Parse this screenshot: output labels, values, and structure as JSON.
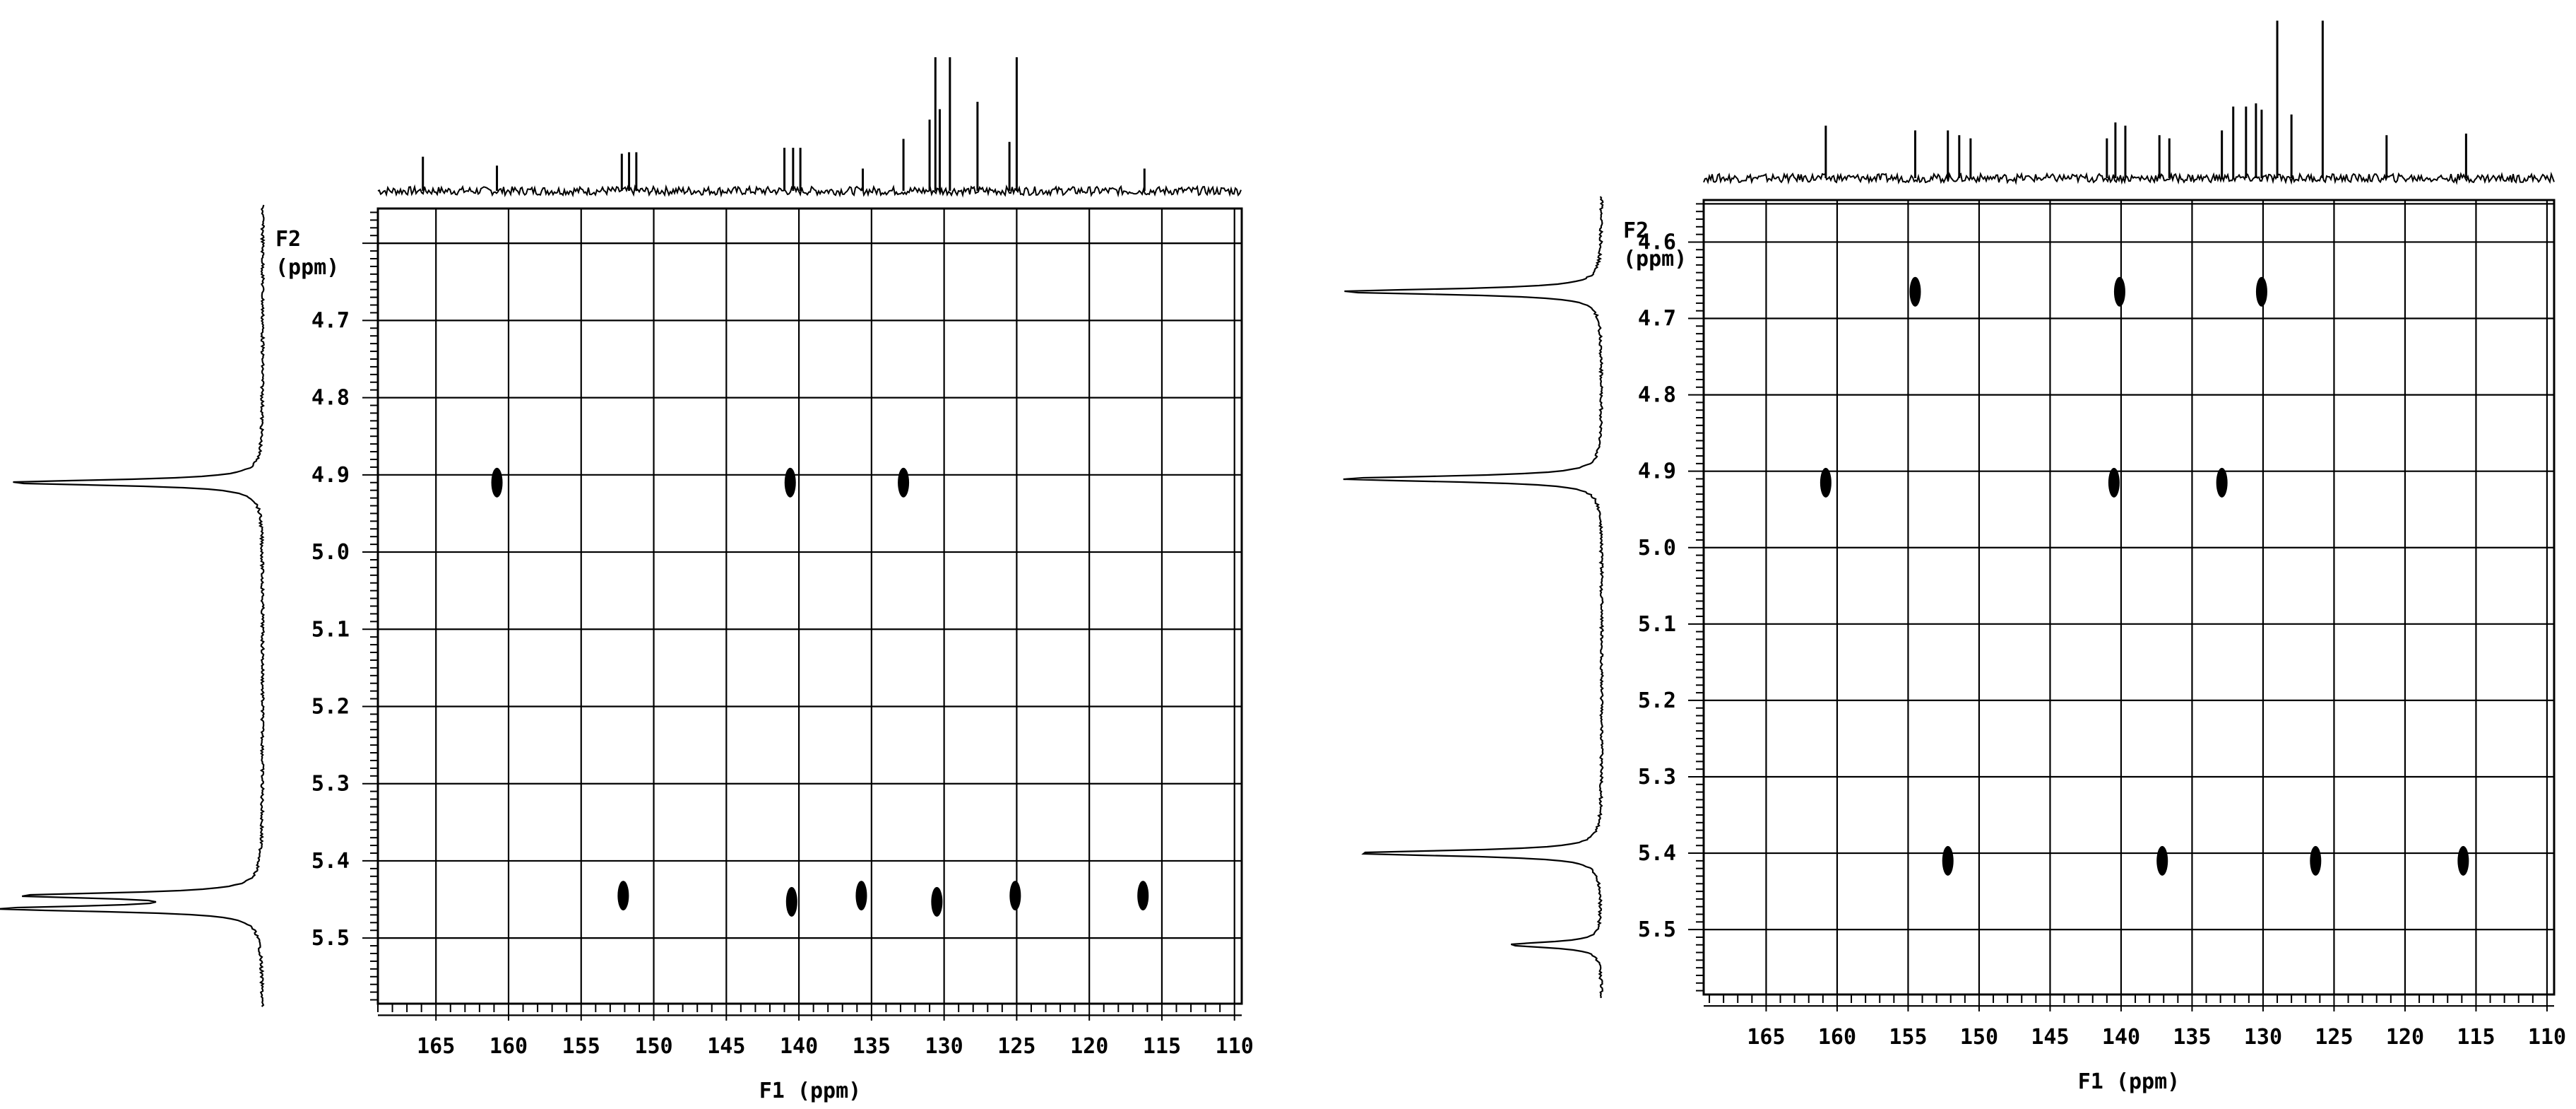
{
  "chart_data": [
    {
      "type": "scatter",
      "xlabel": "F1 (ppm)",
      "ylabel": "F2 (ppm)",
      "xlim": [
        169,
        109.5
      ],
      "ylim": [
        4.555,
        5.585
      ],
      "x_ticks": [
        "165",
        "160",
        "155",
        "150",
        "145",
        "140",
        "135",
        "130",
        "125",
        "120",
        "115",
        "110"
      ],
      "y_ticks": [
        "4.7",
        "4.8",
        "4.9",
        "5.0",
        "5.1",
        "5.2",
        "5.3",
        "5.4",
        "5.5"
      ],
      "grid": true,
      "cross_peaks": [
        {
          "x": 160.8,
          "y": 4.91
        },
        {
          "x": 140.6,
          "y": 4.91
        },
        {
          "x": 132.8,
          "y": 4.91
        },
        {
          "x": 152.1,
          "y": 5.445
        },
        {
          "x": 140.5,
          "y": 5.453
        },
        {
          "x": 135.7,
          "y": 5.445
        },
        {
          "x": 130.5,
          "y": 5.453
        },
        {
          "x": 125.1,
          "y": 5.445
        },
        {
          "x": 116.3,
          "y": 5.445
        }
      ],
      "top_projection_peaks": [
        {
          "ppm": 165.9,
          "h": 0.23
        },
        {
          "ppm": 160.8,
          "h": 0.17
        },
        {
          "ppm": 152.2,
          "h": 0.25
        },
        {
          "ppm": 151.7,
          "h": 0.26
        },
        {
          "ppm": 151.2,
          "h": 0.26
        },
        {
          "ppm": 141.0,
          "h": 0.29
        },
        {
          "ppm": 140.4,
          "h": 0.29
        },
        {
          "ppm": 139.9,
          "h": 0.29
        },
        {
          "ppm": 135.6,
          "h": 0.15
        },
        {
          "ppm": 132.8,
          "h": 0.35
        },
        {
          "ppm": 131.0,
          "h": 0.48
        },
        {
          "ppm": 130.6,
          "h": 0.9
        },
        {
          "ppm": 130.3,
          "h": 0.55
        },
        {
          "ppm": 129.6,
          "h": 0.9
        },
        {
          "ppm": 127.7,
          "h": 0.6
        },
        {
          "ppm": 125.5,
          "h": 0.33
        },
        {
          "ppm": 125.0,
          "h": 0.9
        },
        {
          "ppm": 116.2,
          "h": 0.15
        }
      ],
      "side_projection_peaks": [
        {
          "ppm": 4.91,
          "h": 1.0
        },
        {
          "ppm": 5.445,
          "h": 0.9
        },
        {
          "ppm": 5.462,
          "h": 1.0
        }
      ]
    },
    {
      "type": "scatter",
      "xlabel": "F1 (ppm)",
      "ylabel": "F2 (ppm)",
      "xlim": [
        169.4,
        109.5
      ],
      "ylim": [
        4.545,
        5.585
      ],
      "x_ticks": [
        "165",
        "160",
        "155",
        "150",
        "145",
        "140",
        "135",
        "130",
        "125",
        "120",
        "115",
        "110"
      ],
      "y_ticks": [
        "4.6",
        "4.7",
        "4.8",
        "4.9",
        "5.0",
        "5.1",
        "5.2",
        "5.3",
        "5.4",
        "5.5"
      ],
      "grid": true,
      "cross_peaks": [
        {
          "x": 154.5,
          "y": 4.665
        },
        {
          "x": 140.1,
          "y": 4.665
        },
        {
          "x": 130.1,
          "y": 4.665
        },
        {
          "x": 160.8,
          "y": 4.915
        },
        {
          "x": 140.5,
          "y": 4.915
        },
        {
          "x": 132.9,
          "y": 4.915
        },
        {
          "x": 152.2,
          "y": 5.41
        },
        {
          "x": 137.1,
          "y": 5.41
        },
        {
          "x": 126.3,
          "y": 5.41
        },
        {
          "x": 115.9,
          "y": 5.41
        }
      ],
      "top_projection_peaks": [
        {
          "ppm": 160.8,
          "h": 0.33
        },
        {
          "ppm": 154.5,
          "h": 0.3
        },
        {
          "ppm": 152.2,
          "h": 0.3
        },
        {
          "ppm": 151.4,
          "h": 0.27
        },
        {
          "ppm": 150.6,
          "h": 0.25
        },
        {
          "ppm": 141.0,
          "h": 0.25
        },
        {
          "ppm": 140.4,
          "h": 0.35
        },
        {
          "ppm": 139.7,
          "h": 0.33
        },
        {
          "ppm": 137.3,
          "h": 0.27
        },
        {
          "ppm": 136.6,
          "h": 0.25
        },
        {
          "ppm": 132.9,
          "h": 0.3
        },
        {
          "ppm": 132.1,
          "h": 0.45
        },
        {
          "ppm": 131.2,
          "h": 0.45
        },
        {
          "ppm": 130.5,
          "h": 0.47
        },
        {
          "ppm": 130.1,
          "h": 0.43
        },
        {
          "ppm": 129.0,
          "h": 0.99
        },
        {
          "ppm": 128.0,
          "h": 0.4
        },
        {
          "ppm": 125.8,
          "h": 0.99
        },
        {
          "ppm": 121.3,
          "h": 0.27
        },
        {
          "ppm": 115.7,
          "h": 0.28
        }
      ],
      "side_projection_peaks": [
        {
          "ppm": 4.665,
          "h": 1.0
        },
        {
          "ppm": 4.91,
          "h": 1.0
        },
        {
          "ppm": 5.4,
          "h": 0.95
        },
        {
          "ppm": 5.52,
          "h": 0.35
        }
      ]
    }
  ],
  "colors": {
    "ink": "#000000",
    "background": "#ffffff"
  }
}
